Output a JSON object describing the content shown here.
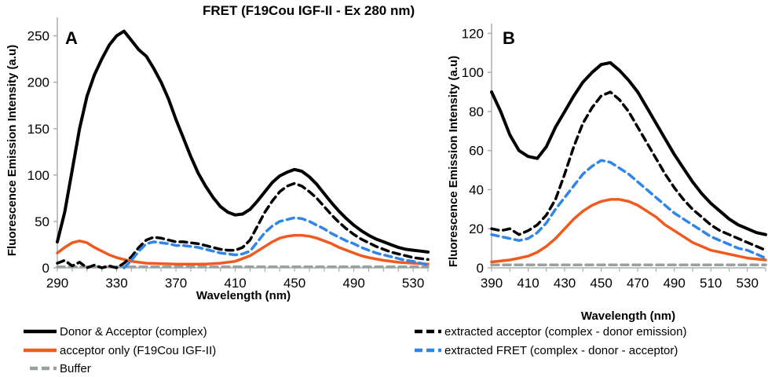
{
  "chart_data": [
    {
      "type": "line",
      "panel": "A",
      "title": "FRET (F19Cou IGF-II - Ex 280 nm)",
      "xlabel": "Wavelength (nm)",
      "ylabel": "Fluorescence Emission Intensity (a.u)",
      "xlim": [
        290,
        540
      ],
      "ylim": [
        0,
        270
      ],
      "xticks": [
        290,
        330,
        370,
        410,
        450,
        490,
        530
      ],
      "yticks": [
        0,
        50,
        100,
        150,
        200,
        250
      ],
      "grid": false,
      "series": [
        {
          "name": "Donor & Acceptor (complex)",
          "color": "#000000",
          "dash": "solid",
          "x": [
            290,
            295,
            300,
            305,
            310,
            315,
            320,
            325,
            330,
            335,
            340,
            345,
            350,
            355,
            360,
            365,
            370,
            375,
            380,
            385,
            390,
            395,
            400,
            405,
            410,
            415,
            420,
            425,
            430,
            435,
            440,
            445,
            450,
            455,
            460,
            465,
            470,
            475,
            480,
            485,
            490,
            495,
            500,
            505,
            510,
            515,
            520,
            525,
            530,
            535,
            540
          ],
          "y": [
            28,
            60,
            105,
            150,
            185,
            208,
            225,
            240,
            250,
            255,
            245,
            235,
            228,
            215,
            200,
            182,
            160,
            140,
            120,
            102,
            88,
            76,
            66,
            60,
            57,
            58,
            63,
            72,
            82,
            92,
            99,
            103,
            106,
            104,
            98,
            90,
            80,
            70,
            61,
            53,
            46,
            40,
            35,
            31,
            28,
            25,
            22,
            20,
            19,
            18,
            17
          ]
        },
        {
          "name": "acceptor only (F19Cou IGF-II)",
          "color": "#f05a1e",
          "dash": "solid",
          "x": [
            290,
            295,
            300,
            305,
            310,
            315,
            320,
            325,
            330,
            335,
            340,
            345,
            350,
            360,
            370,
            380,
            390,
            400,
            410,
            415,
            420,
            425,
            430,
            435,
            440,
            445,
            450,
            455,
            460,
            465,
            470,
            475,
            480,
            485,
            490,
            495,
            500,
            510,
            520,
            530,
            540
          ],
          "y": [
            16,
            22,
            27,
            29,
            27,
            22,
            18,
            14,
            11,
            9,
            7,
            6,
            5,
            4.5,
            4,
            4,
            4,
            5,
            7,
            10,
            13,
            18,
            23,
            28,
            32,
            34,
            35,
            35,
            34,
            32,
            29,
            26,
            22,
            19,
            16,
            13,
            11,
            8,
            6,
            5,
            4
          ]
        },
        {
          "name": "Buffer",
          "color": "#9aa0a0",
          "dash": "dashed",
          "x": [
            290,
            540
          ],
          "y": [
            1,
            1
          ]
        },
        {
          "name": "extracted acceptor (complex - donor emission)",
          "color": "#000000",
          "dash": "dashed",
          "x": [
            290,
            295,
            300,
            305,
            310,
            315,
            320,
            325,
            330,
            335,
            340,
            345,
            350,
            355,
            360,
            365,
            370,
            375,
            380,
            385,
            390,
            395,
            400,
            405,
            410,
            415,
            420,
            425,
            430,
            435,
            440,
            445,
            450,
            455,
            460,
            465,
            470,
            475,
            480,
            485,
            490,
            495,
            500,
            505,
            510,
            515,
            520,
            525,
            530,
            535,
            540
          ],
          "y": [
            5,
            8,
            2,
            6,
            0,
            3,
            0,
            2,
            0,
            5,
            12,
            22,
            30,
            33,
            32,
            30,
            28,
            28,
            27,
            26,
            24,
            22,
            20,
            19,
            19,
            22,
            30,
            45,
            60,
            72,
            82,
            88,
            91,
            88,
            82,
            75,
            66,
            57,
            49,
            42,
            36,
            31,
            27,
            23,
            20,
            17,
            15,
            13,
            11,
            10,
            9
          ]
        },
        {
          "name": "extracted FRET (complex - donor - acceptor)",
          "color": "#2f86e8",
          "dash": "dashed",
          "x": [
            335,
            340,
            345,
            350,
            355,
            360,
            365,
            370,
            375,
            380,
            385,
            390,
            395,
            400,
            405,
            410,
            415,
            420,
            425,
            430,
            435,
            440,
            445,
            450,
            455,
            460,
            465,
            470,
            475,
            480,
            485,
            490,
            495,
            500,
            505,
            510,
            515,
            520,
            525,
            530,
            535,
            540
          ],
          "y": [
            0,
            8,
            18,
            26,
            28,
            27,
            26,
            24,
            24,
            23,
            22,
            20,
            18,
            16,
            15,
            14,
            15,
            18,
            28,
            38,
            45,
            50,
            52,
            54,
            53,
            50,
            46,
            42,
            37,
            33,
            29,
            26,
            22,
            19,
            16,
            14,
            12,
            10,
            8,
            7,
            5,
            3
          ]
        }
      ]
    },
    {
      "type": "line",
      "panel": "B",
      "xlabel": "Wavelength (nm)",
      "ylabel": "Fluorescence Emission Intensity (a.u)",
      "xlim": [
        390,
        540
      ],
      "ylim": [
        0,
        125
      ],
      "xticks": [
        390,
        410,
        430,
        450,
        470,
        490,
        510,
        530
      ],
      "yticks": [
        0,
        20,
        40,
        60,
        80,
        100,
        120
      ],
      "grid": false,
      "series": [
        {
          "name": "Donor & Acceptor (complex)",
          "color": "#000000",
          "dash": "solid",
          "x": [
            390,
            395,
            400,
            405,
            410,
            415,
            420,
            425,
            430,
            435,
            440,
            445,
            450,
            455,
            460,
            465,
            470,
            475,
            480,
            485,
            490,
            495,
            500,
            505,
            510,
            515,
            520,
            525,
            530,
            535,
            540
          ],
          "y": [
            90,
            80,
            68,
            60,
            57,
            56,
            62,
            72,
            80,
            88,
            95,
            100,
            104,
            105,
            101,
            96,
            90,
            82,
            74,
            66,
            58,
            51,
            44,
            38,
            33,
            29,
            25,
            22,
            20,
            18,
            17
          ]
        },
        {
          "name": "acceptor only (F19Cou IGF-II)",
          "color": "#f05a1e",
          "dash": "solid",
          "x": [
            390,
            395,
            400,
            405,
            410,
            415,
            420,
            425,
            430,
            435,
            440,
            445,
            450,
            455,
            460,
            465,
            470,
            475,
            480,
            485,
            490,
            495,
            500,
            505,
            510,
            515,
            520,
            525,
            530,
            535,
            540
          ],
          "y": [
            3,
            3.5,
            4,
            5,
            6,
            8,
            11,
            15,
            20,
            25,
            29,
            32,
            34,
            35,
            35,
            34,
            32,
            29,
            26,
            22,
            19,
            16,
            13,
            11,
            9,
            8,
            7,
            6,
            5,
            4.5,
            4
          ]
        },
        {
          "name": "Buffer",
          "color": "#9aa0a0",
          "dash": "dashed",
          "x": [
            390,
            540
          ],
          "y": [
            1.5,
            1.5
          ]
        },
        {
          "name": "extracted acceptor (complex - donor emission)",
          "color": "#000000",
          "dash": "dashed",
          "x": [
            390,
            395,
            400,
            405,
            410,
            415,
            420,
            425,
            430,
            435,
            440,
            445,
            450,
            455,
            460,
            465,
            470,
            475,
            480,
            485,
            490,
            495,
            500,
            505,
            510,
            515,
            520,
            525,
            530,
            535,
            540
          ],
          "y": [
            20,
            19,
            20,
            17,
            19,
            22,
            27,
            35,
            48,
            62,
            74,
            82,
            88,
            90,
            86,
            80,
            72,
            64,
            56,
            48,
            41,
            35,
            30,
            26,
            22,
            19,
            17,
            15,
            13,
            11,
            9
          ]
        },
        {
          "name": "extracted FRET (complex - donor - acceptor)",
          "color": "#2f86e8",
          "dash": "dashed",
          "x": [
            390,
            395,
            400,
            405,
            410,
            415,
            420,
            425,
            430,
            435,
            440,
            445,
            450,
            455,
            460,
            465,
            470,
            475,
            480,
            485,
            490,
            495,
            500,
            505,
            510,
            515,
            520,
            525,
            530,
            535,
            540
          ],
          "y": [
            17,
            16,
            15,
            14,
            15,
            18,
            23,
            30,
            36,
            42,
            48,
            52,
            55,
            54,
            51,
            48,
            44,
            40,
            36,
            32,
            28,
            25,
            22,
            19,
            16,
            14,
            12,
            10,
            9,
            7,
            5
          ]
        }
      ]
    }
  ],
  "legend": [
    {
      "label": "Donor & Acceptor (complex)",
      "color": "#000000",
      "dash": "solid"
    },
    {
      "label": "acceptor only (F19Cou IGF-II)",
      "color": "#f05a1e",
      "dash": "solid"
    },
    {
      "label": "Buffer",
      "color": "#9aa0a0",
      "dash": "dashed"
    },
    {
      "label": "extracted acceptor (complex - donor emission)",
      "color": "#000000",
      "dash": "dashed"
    },
    {
      "label": "extracted FRET (complex - donor - acceptor)",
      "color": "#2f86e8",
      "dash": "dashed"
    }
  ]
}
